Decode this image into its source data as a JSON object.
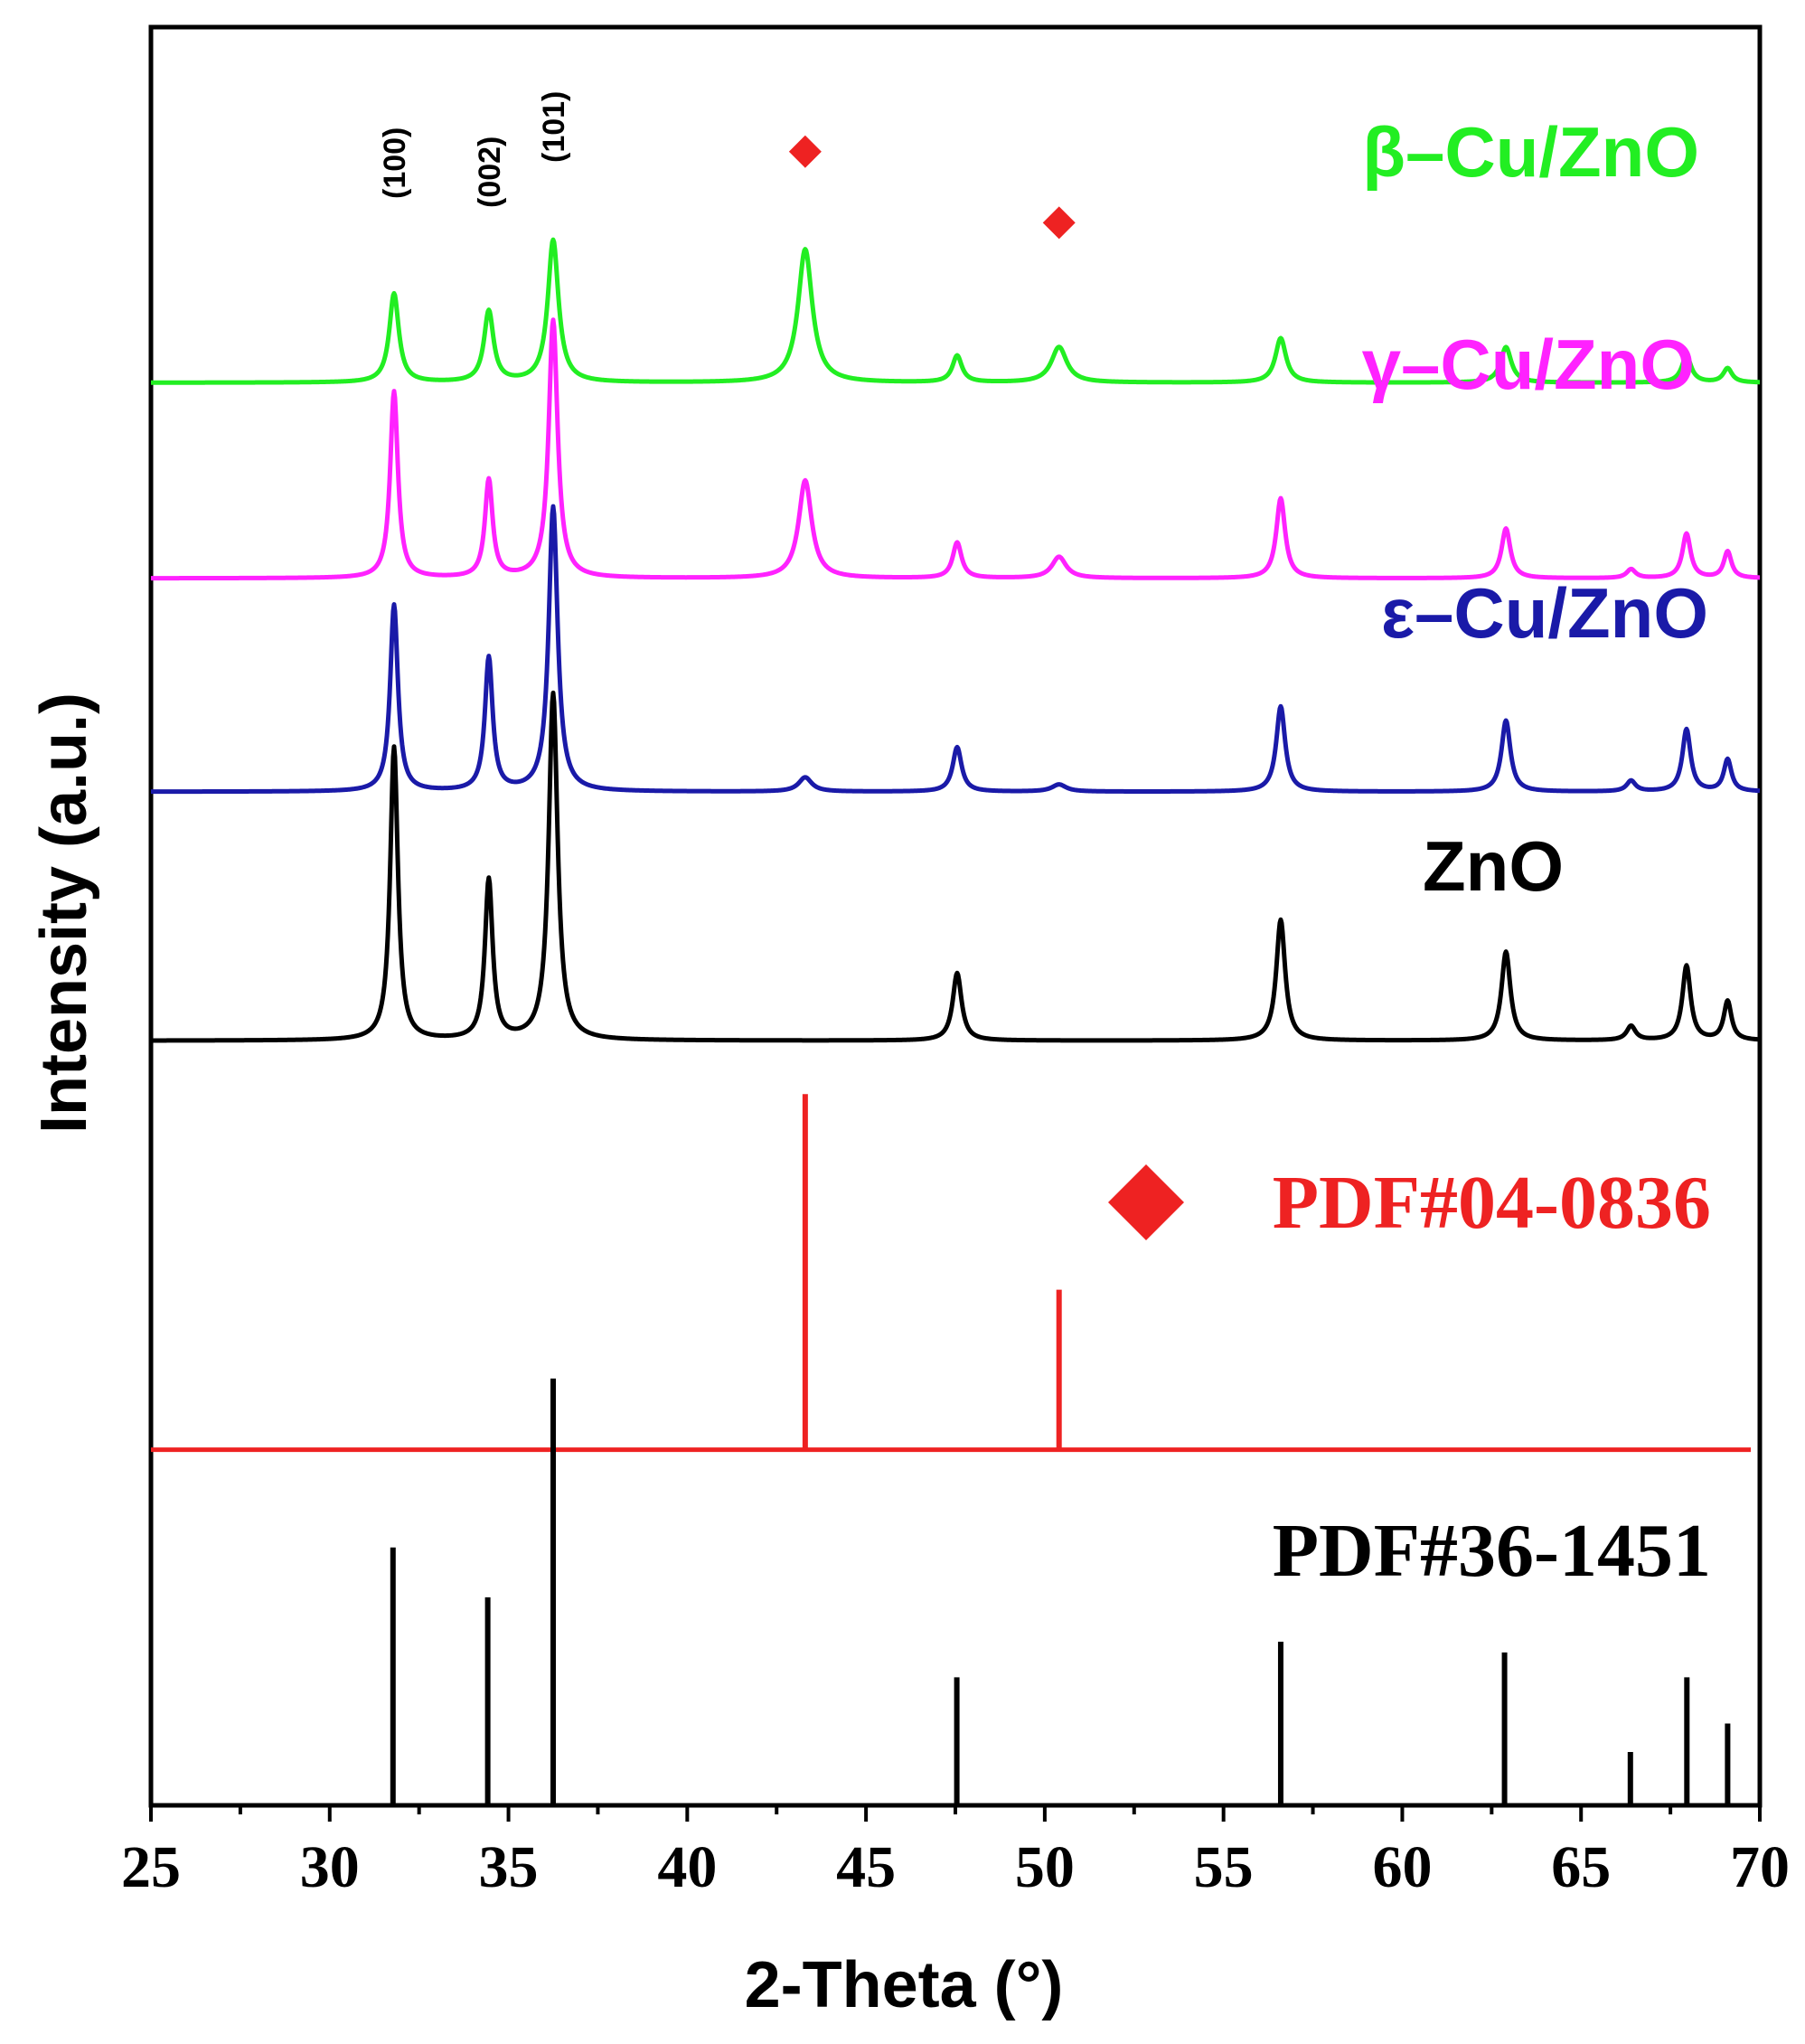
{
  "chart_data": {
    "type": "line",
    "title": "",
    "xlabel": "2-Theta (°)",
    "ylabel": "Intensity (a.u.)",
    "xlim": [
      25,
      70
    ],
    "xticks": [
      25,
      30,
      35,
      40,
      45,
      50,
      55,
      60,
      65,
      70
    ],
    "grid": false,
    "legend": "none",
    "series": [
      {
        "name": "β–Cu/ZnO",
        "color": "#22ee22",
        "baseline": 0.8,
        "peaks": [
          {
            "x": 31.8,
            "h": 0.05,
            "w": 0.16
          },
          {
            "x": 34.45,
            "h": 0.04,
            "w": 0.16
          },
          {
            "x": 36.25,
            "h": 0.08,
            "w": 0.18
          },
          {
            "x": 43.3,
            "h": 0.075,
            "w": 0.24
          },
          {
            "x": 47.55,
            "h": 0.015,
            "w": 0.16
          },
          {
            "x": 50.4,
            "h": 0.02,
            "w": 0.26
          },
          {
            "x": 56.6,
            "h": 0.025,
            "w": 0.18
          },
          {
            "x": 62.9,
            "h": 0.02,
            "w": 0.18
          },
          {
            "x": 67.95,
            "h": 0.015,
            "w": 0.16
          },
          {
            "x": 69.1,
            "h": 0.008,
            "w": 0.15
          }
        ]
      },
      {
        "name": "γ–Cu/ZnO",
        "color": "#ff22ff",
        "baseline": 0.69,
        "peaks": [
          {
            "x": 31.8,
            "h": 0.105,
            "w": 0.13
          },
          {
            "x": 34.45,
            "h": 0.055,
            "w": 0.13
          },
          {
            "x": 36.25,
            "h": 0.145,
            "w": 0.15
          },
          {
            "x": 43.3,
            "h": 0.055,
            "w": 0.22
          },
          {
            "x": 47.55,
            "h": 0.02,
            "w": 0.15
          },
          {
            "x": 50.4,
            "h": 0.012,
            "w": 0.24
          },
          {
            "x": 56.6,
            "h": 0.045,
            "w": 0.15
          },
          {
            "x": 62.9,
            "h": 0.028,
            "w": 0.15
          },
          {
            "x": 66.4,
            "h": 0.005,
            "w": 0.15
          },
          {
            "x": 67.95,
            "h": 0.025,
            "w": 0.14
          },
          {
            "x": 69.1,
            "h": 0.015,
            "w": 0.13
          }
        ]
      },
      {
        "name": "ε–Cu/ZnO",
        "color": "#1a1aa8",
        "baseline": 0.57,
        "peaks": [
          {
            "x": 31.8,
            "h": 0.105,
            "w": 0.13
          },
          {
            "x": 34.45,
            "h": 0.075,
            "w": 0.13
          },
          {
            "x": 36.25,
            "h": 0.16,
            "w": 0.15
          },
          {
            "x": 43.3,
            "h": 0.008,
            "w": 0.22
          },
          {
            "x": 47.55,
            "h": 0.025,
            "w": 0.15
          },
          {
            "x": 50.4,
            "h": 0.004,
            "w": 0.24
          },
          {
            "x": 56.6,
            "h": 0.048,
            "w": 0.15
          },
          {
            "x": 62.9,
            "h": 0.04,
            "w": 0.15
          },
          {
            "x": 66.4,
            "h": 0.006,
            "w": 0.15
          },
          {
            "x": 67.95,
            "h": 0.035,
            "w": 0.14
          },
          {
            "x": 69.1,
            "h": 0.018,
            "w": 0.13
          }
        ]
      },
      {
        "name": "ZnO",
        "color": "#000000",
        "baseline": 0.43,
        "peaks": [
          {
            "x": 31.8,
            "h": 0.165,
            "w": 0.13
          },
          {
            "x": 34.45,
            "h": 0.09,
            "w": 0.13
          },
          {
            "x": 36.25,
            "h": 0.195,
            "w": 0.15
          },
          {
            "x": 47.55,
            "h": 0.038,
            "w": 0.15
          },
          {
            "x": 56.6,
            "h": 0.068,
            "w": 0.15
          },
          {
            "x": 62.9,
            "h": 0.05,
            "w": 0.15
          },
          {
            "x": 66.4,
            "h": 0.008,
            "w": 0.15
          },
          {
            "x": 67.95,
            "h": 0.042,
            "w": 0.14
          },
          {
            "x": 69.1,
            "h": 0.022,
            "w": 0.13
          }
        ]
      }
    ],
    "references": [
      {
        "name": "PDF#04-0836",
        "color": "#ee2222",
        "baseline": 0.2,
        "sticks": [
          {
            "x": 43.3,
            "h": 0.2
          },
          {
            "x": 50.4,
            "h": 0.09
          }
        ]
      },
      {
        "name": "PDF#36-1451",
        "color": "#000000",
        "baseline": 0.0,
        "sticks": [
          {
            "x": 31.77,
            "h": 0.145
          },
          {
            "x": 34.42,
            "h": 0.117
          },
          {
            "x": 36.25,
            "h": 0.24
          },
          {
            "x": 47.54,
            "h": 0.072
          },
          {
            "x": 56.6,
            "h": 0.092
          },
          {
            "x": 62.86,
            "h": 0.086
          },
          {
            "x": 66.38,
            "h": 0.03
          },
          {
            "x": 67.96,
            "h": 0.072
          },
          {
            "x": 69.1,
            "h": 0.046
          }
        ]
      }
    ],
    "annotations": {
      "hkl": [
        {
          "x": 31.8,
          "text": "(100)"
        },
        {
          "x": 34.45,
          "text": "(002)"
        },
        {
          "x": 36.25,
          "text": "(101)"
        }
      ],
      "cu_markers": [
        {
          "x": 43.3,
          "y": 0.93
        },
        {
          "x": 50.4,
          "y": 0.89
        }
      ],
      "marker_color": "#ee2222"
    }
  }
}
